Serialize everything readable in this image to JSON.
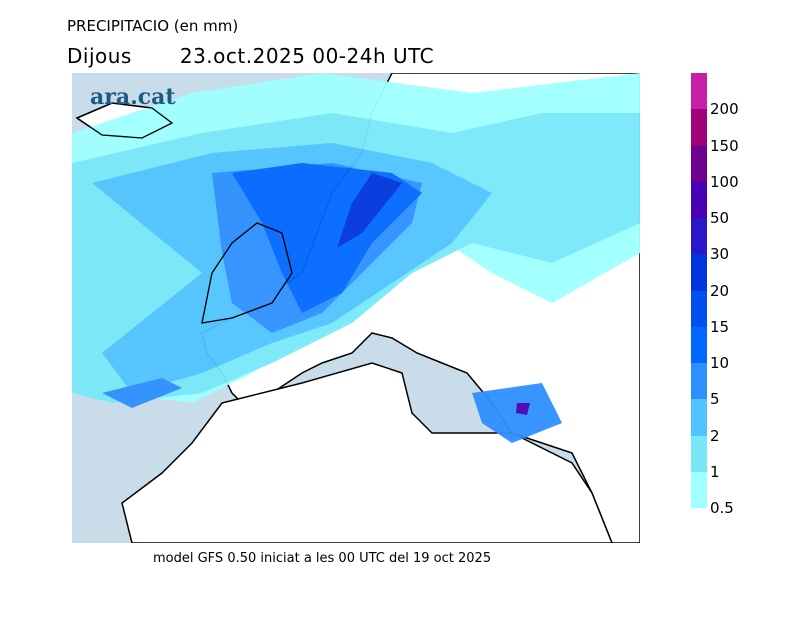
{
  "title": "PRECIPITACIO (en mm)",
  "day": "Dijous",
  "period": "23.oct.2025 00-24h UTC",
  "logo": "ara.cat",
  "footer": "model GFS 0.50 iniciat a les 00 UTC del 19 oct 2025",
  "legend": {
    "unit": "mm",
    "bins": [
      {
        "label": "0.5",
        "color": "#a0ffff"
      },
      {
        "label": "1",
        "color": "#78e8f8"
      },
      {
        "label": "2",
        "color": "#50c4ff"
      },
      {
        "label": "5",
        "color": "#2e90ff"
      },
      {
        "label": "10",
        "color": "#0068ff"
      },
      {
        "label": "15",
        "color": "#0050f0"
      },
      {
        "label": "20",
        "color": "#0034dc"
      },
      {
        "label": "30",
        "color": "#2a18c8"
      },
      {
        "label": "50",
        "color": "#4800b4"
      },
      {
        "label": "100",
        "color": "#700090"
      },
      {
        "label": "150",
        "color": "#a0007a"
      },
      {
        "label": "200",
        "color": "#c81ea8"
      }
    ]
  },
  "colors": {
    "sea": "#c8dcea",
    "land": "#ffffff",
    "coast": "#000000"
  }
}
